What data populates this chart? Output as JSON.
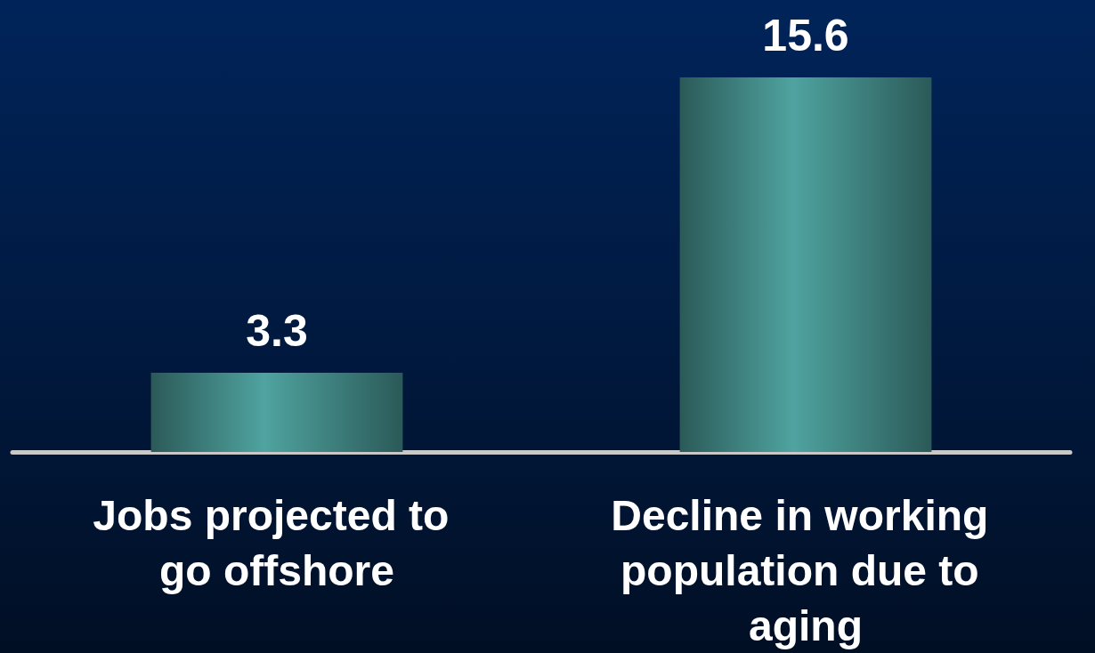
{
  "chart_data": {
    "type": "bar",
    "categories": [
      "Jobs projected to go offshore",
      "Decline in working population due to aging"
    ],
    "values": [
      3.3,
      15.6
    ],
    "color": "#4fa3a0",
    "data_labels": true
  }
}
